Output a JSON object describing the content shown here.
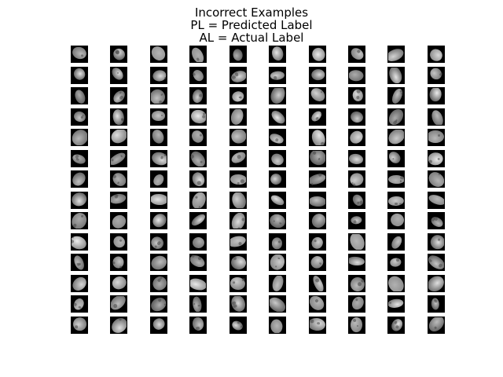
{
  "figure": {
    "title_lines": [
      "Incorrect Examples",
      "PL = Predicted Label",
      "AL = Actual Label"
    ]
  },
  "grid": {
    "rows": 14,
    "cols": 10
  },
  "colors": {
    "background": "#ffffff",
    "tile_background": "#000000",
    "text": "#000000"
  }
}
